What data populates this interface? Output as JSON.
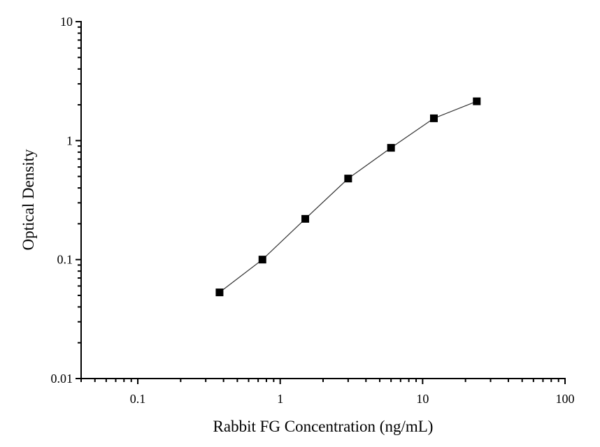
{
  "chart_data": {
    "type": "line",
    "title": "",
    "xlabel": "Rabbit FG Concentration (ng/mL)",
    "ylabel": "Optical Density",
    "xscale": "log",
    "yscale": "log",
    "xlim": [
      0.04,
      100
    ],
    "ylim": [
      0.01,
      10
    ],
    "x_ticks": [
      0.1,
      1,
      10,
      100
    ],
    "x_tick_labels": [
      "0.1",
      "1",
      "10",
      "100"
    ],
    "y_ticks": [
      0.01,
      0.1,
      1,
      10
    ],
    "y_tick_labels": [
      "0.01",
      "0.1",
      "1",
      "10"
    ],
    "grid": false,
    "marker": "square",
    "color": "#000000",
    "series": [
      {
        "x": [
          0.375,
          0.75,
          1.5,
          3,
          6,
          12,
          24
        ],
        "y": [
          0.053,
          0.1,
          0.22,
          0.48,
          0.87,
          1.54,
          2.14
        ]
      }
    ]
  }
}
